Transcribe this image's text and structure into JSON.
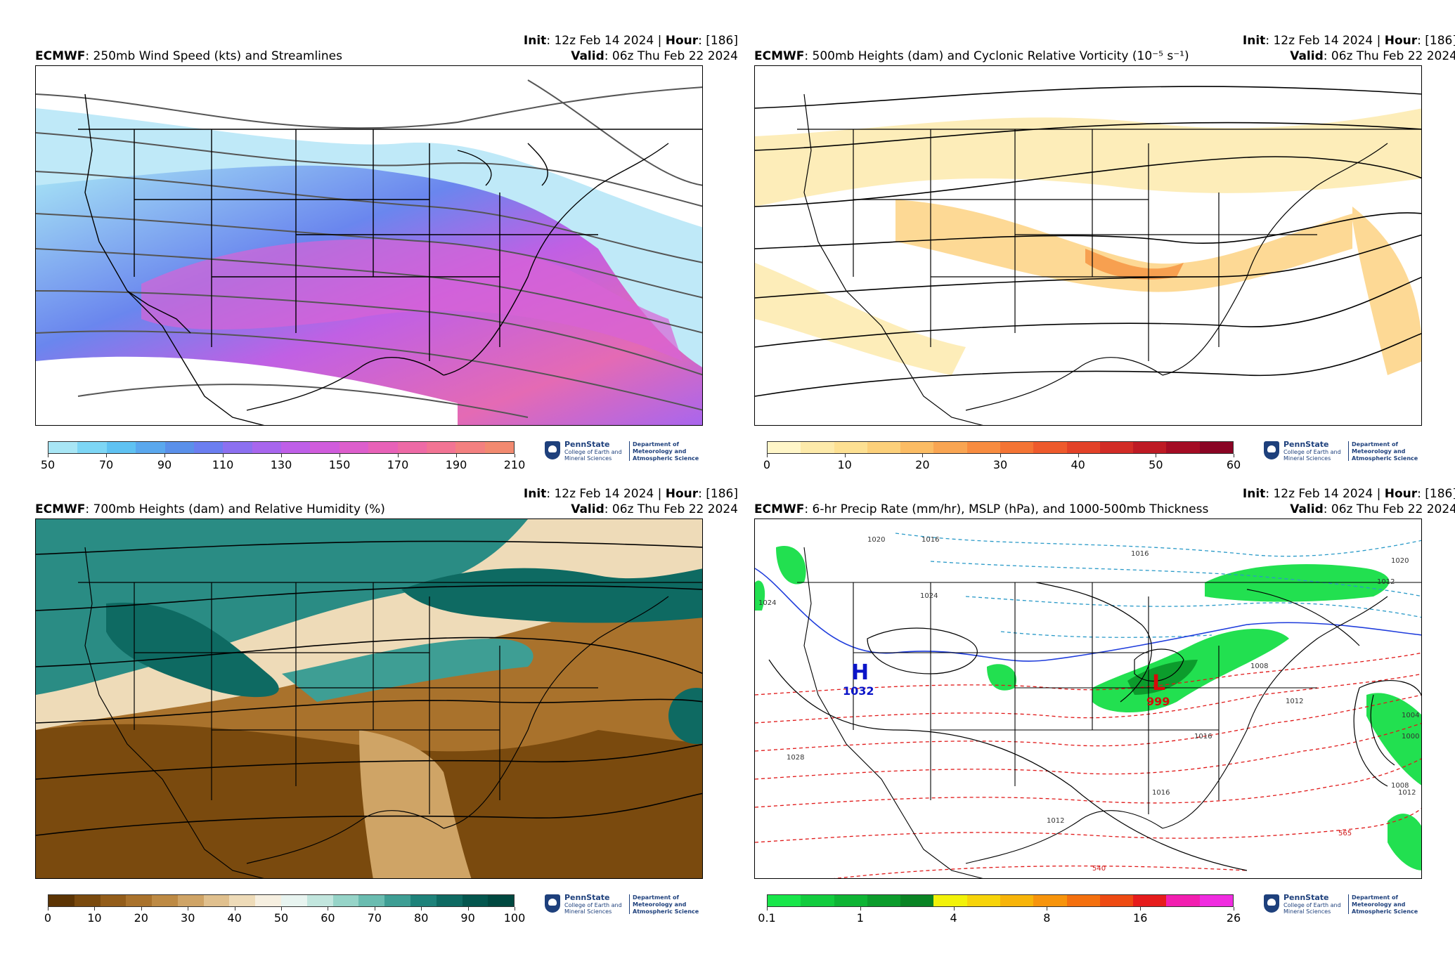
{
  "panels": [
    {
      "init_label": "Init",
      "init_value": ": 12z Feb 14 2024 | ",
      "hour_label": "Hour",
      "hour_value": ": [186]",
      "model": "ECMWF",
      "title": ": 250mb Wind Speed (kts) and Streamlines",
      "valid_label": "Valid",
      "valid_value": ": 06z Thu Feb 22 2024",
      "colorbar": {
        "colors": [
          "#a8e6f5",
          "#7dd6f5",
          "#5fc2f2",
          "#5aa8ee",
          "#5a90ea",
          "#6b7ef0",
          "#8c70f0",
          "#a866ee",
          "#bf5fe8",
          "#d05cdc",
          "#dd5ecc",
          "#e862b8",
          "#ee6aa6",
          "#f27494",
          "#f38080",
          "#f28a70"
        ],
        "ticks": [
          "50",
          "70",
          "90",
          "110",
          "130",
          "150",
          "170",
          "190",
          "210"
        ]
      }
    },
    {
      "init_label": "Init",
      "init_value": ": 12z Feb 14 2024 | ",
      "hour_label": "Hour",
      "hour_value": ": [186]",
      "model": "ECMWF",
      "title": ": 500mb Heights (dam) and Cyclonic Relative Vorticity (10⁻⁵ s⁻¹)",
      "valid_label": "Valid",
      "valid_value": ": 06z Thu Feb 22 2024",
      "colorbar": {
        "colors": [
          "#fff6c8",
          "#fdeaaa",
          "#fde092",
          "#fcd07a",
          "#fbbc64",
          "#f9a552",
          "#f88c40",
          "#f47434",
          "#ee5a2c",
          "#e34228",
          "#d22c26",
          "#be1a24",
          "#a40c24",
          "#8a0424"
        ],
        "ticks": [
          "0",
          "10",
          "20",
          "30",
          "40",
          "50",
          "60"
        ]
      }
    },
    {
      "init_label": "Init",
      "init_value": ": 12z Feb 14 2024 | ",
      "hour_label": "Hour",
      "hour_value": ": [186]",
      "model": "ECMWF",
      "title": ": 700mb Heights (dam) and Relative Humidity (%)",
      "valid_label": "Valid",
      "valid_value": ": 06z Thu Feb 22 2024",
      "colorbar": {
        "colors": [
          "#5c3404",
          "#7a4a0e",
          "#935d1a",
          "#a9722c",
          "#bd8a44",
          "#cfa466",
          "#e0c08e",
          "#eedbb8",
          "#f6efe0",
          "#e8f4f0",
          "#c2e6de",
          "#96d4c8",
          "#6abcb0",
          "#3e9e94",
          "#1e827a",
          "#0e6a62",
          "#04564e",
          "#004840"
        ],
        "ticks": [
          "0",
          "10",
          "20",
          "30",
          "40",
          "50",
          "60",
          "70",
          "80",
          "90",
          "100"
        ]
      }
    },
    {
      "init_label": "Init",
      "init_value": ": 12z Feb 14 2024 | ",
      "hour_label": "Hour",
      "hour_value": ": [186]",
      "model": "ECMWF",
      "title": ": 6-hr Precip Rate (mm/hr), MSLP (hPa), and 1000-500mb Thickness",
      "valid_label": "Valid",
      "valid_value": ": 06z Thu Feb 22 2024",
      "colorbar": {
        "colors": [
          "#18e64a",
          "#12cc3e",
          "#0eb434",
          "#0c9c2c",
          "#0a8424",
          "#f2f20a",
          "#f7d40a",
          "#f7b40a",
          "#f7940c",
          "#f4700e",
          "#ee4a12",
          "#e61c1c",
          "#f21eb0",
          "#f02ce0"
        ],
        "ticks": [
          "0.1",
          "1",
          "4",
          "8",
          "16",
          "26"
        ]
      },
      "annotations": {
        "high_letter": "H",
        "high_value": "1032",
        "low_letter": "L",
        "low_value": "999",
        "isobar_labels": [
          "1020",
          "1016",
          "1024",
          "1016",
          "1020",
          "1012",
          "1008",
          "1012",
          "1016",
          "1028",
          "1004",
          "1000",
          "1012",
          "1008",
          "1016",
          "1012",
          "1024"
        ],
        "thickness_labels": [
          "565",
          "540"
        ]
      }
    }
  ],
  "logo": {
    "name": "PennState",
    "sub": "College of Earth and Mineral Sciences",
    "dept": "Department of Meteorology and Atmospheric Science"
  }
}
